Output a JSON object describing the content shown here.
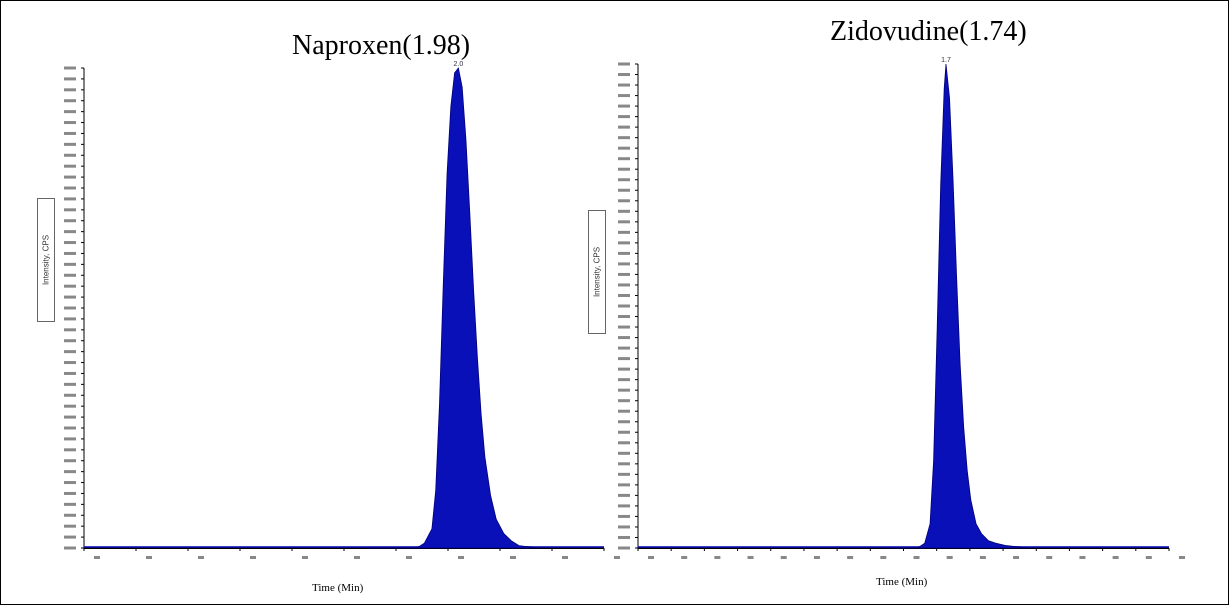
{
  "chart_data": [
    {
      "type": "area",
      "title": "Naproxen(1.98)",
      "xlabel": "Time (Min)",
      "ylabel": "Intensity, CPS",
      "peak_label": "2.0",
      "x": [
        1.5,
        1.6,
        1.7,
        1.76,
        1.8,
        1.84,
        1.86,
        1.88,
        1.9,
        1.92,
        1.94,
        1.96,
        1.98,
        2.0,
        2.02,
        2.04,
        2.06,
        2.08,
        2.1,
        2.12,
        2.15,
        2.18,
        2.22,
        2.26,
        2.3,
        2.4
      ],
      "y": [
        0,
        0,
        0,
        0,
        1,
        4,
        12,
        30,
        55,
        78,
        92,
        99,
        100,
        96,
        85,
        70,
        54,
        40,
        28,
        19,
        11,
        6,
        3,
        1.5,
        0.5,
        0
      ],
      "xlim": [
        0.0,
        2.75
      ],
      "ylim": [
        0,
        100
      ],
      "color": "#0a10b8"
    },
    {
      "type": "area",
      "title": "Zidovudine(1.74)",
      "xlabel": "Time (Min)",
      "ylabel": "Intensity, CPS",
      "peak_label": "1.7",
      "x": [
        1.4,
        1.5,
        1.58,
        1.62,
        1.65,
        1.67,
        1.69,
        1.71,
        1.73,
        1.74,
        1.76,
        1.78,
        1.8,
        1.82,
        1.84,
        1.86,
        1.88,
        1.91,
        1.94,
        1.98,
        2.02,
        2.08,
        2.2
      ],
      "y": [
        0,
        0,
        0,
        1,
        5,
        18,
        45,
        75,
        95,
        100,
        93,
        76,
        56,
        38,
        25,
        16,
        10,
        5,
        3,
        1.5,
        1,
        0.5,
        0
      ],
      "xlim": [
        0.0,
        3.0
      ],
      "ylim": [
        0,
        100
      ],
      "color": "#0a10b8"
    }
  ]
}
